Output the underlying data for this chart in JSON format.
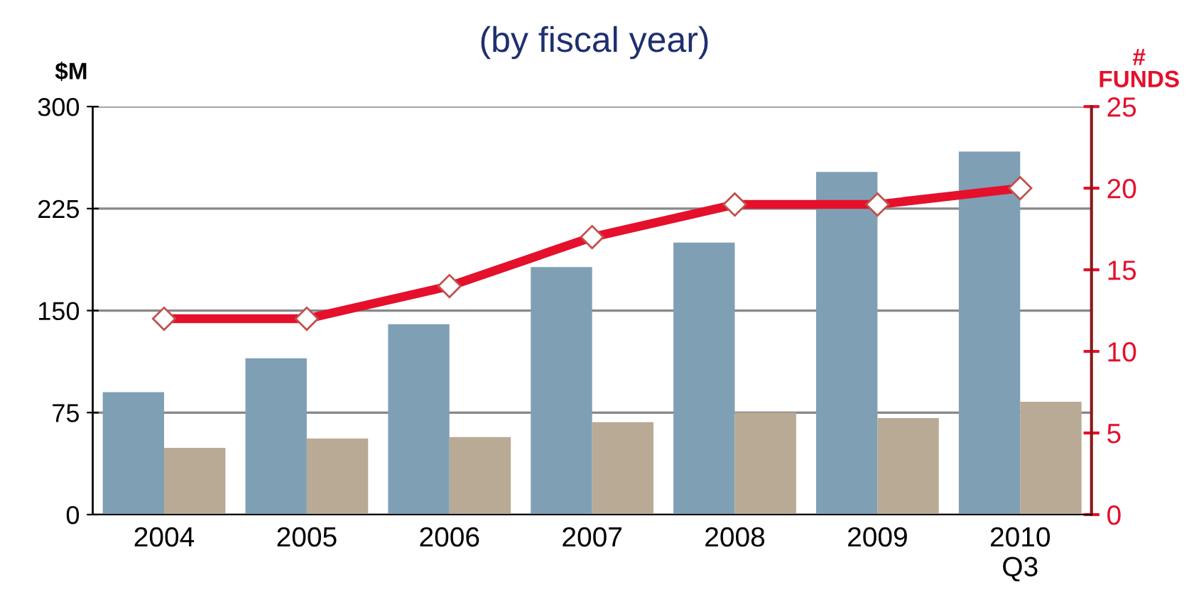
{
  "chart_data": {
    "type": "bar",
    "title": "(by fiscal year)",
    "ylabel": "$M",
    "y2label": "#\nFUNDS",
    "categories": [
      "2004",
      "2005",
      "2006",
      "2007",
      "2008",
      "2009",
      "2010\nQ3"
    ],
    "series": [
      {
        "color": "#7f9fb5",
        "values": [
          90,
          115,
          140,
          182,
          200,
          252,
          267
        ]
      },
      {
        "color": "#b8aa94",
        "values": [
          49,
          56,
          57,
          68,
          75,
          71,
          83
        ]
      },
      {
        "type": "line",
        "axis": "y2",
        "color": "#e4102c",
        "marker": "diamond",
        "values": [
          12,
          12,
          14,
          17,
          19,
          19,
          20
        ]
      }
    ],
    "ylim": [
      0,
      300
    ],
    "yticks": [
      0,
      75,
      150,
      225,
      300
    ],
    "y2lim": [
      0,
      25
    ],
    "y2ticks": [
      0,
      5,
      10,
      15,
      20,
      25
    ],
    "grid": "y"
  }
}
